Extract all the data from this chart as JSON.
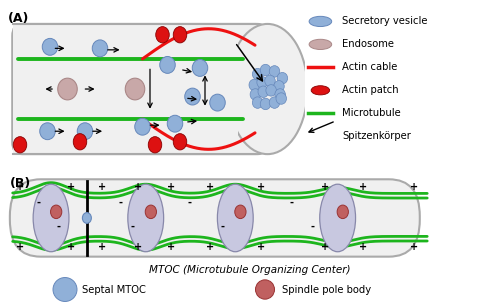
{
  "fig_width": 5.0,
  "fig_height": 3.07,
  "dpi": 100,
  "bg_color": "#ffffff",
  "panel_A": {
    "hypha_fill": "#f0f0f0",
    "hypha_outline": "#aaaaaa",
    "microtubule_color": "#1db51d",
    "actin_cable_color": "#ee1111",
    "secretory_vesicle_color": "#90b0d8",
    "secretory_vesicle_edge": "#6688bb",
    "endosome_color": "#c8a8a8",
    "endosome_edge": "#aa8888",
    "actin_patch_color": "#dd1111",
    "spk_color": "#90b0d8",
    "spk_edge": "#6688bb"
  },
  "panel_B": {
    "hypha_fill": "#f0f0f0",
    "hypha_outline": "#aaaaaa",
    "microtubule_color": "#1db51d",
    "mtoc_color": "#c8c8e0",
    "mtoc_edge": "#8888aa",
    "spb_color": "#c06060",
    "spb_edge": "#993333",
    "septal_mtoc_color": "#90b0d8",
    "septal_mtoc_edge": "#6688bb"
  },
  "legend_A": {
    "sv_label": "Secretory vesicle",
    "endo_label": "Endosome",
    "actin_cable_label": "Actin cable",
    "actin_patch_label": "Actin patch",
    "mt_label": "Microtubule",
    "spk_label": "Spitzenkörper"
  },
  "legend_B": {
    "mtoc_title": "MTOC (Microtubule Organizing Center)",
    "septal_label": "Septal MTOC",
    "spb_label": "Spindle pole body"
  },
  "label_A": "(A)",
  "label_B": "(B)"
}
